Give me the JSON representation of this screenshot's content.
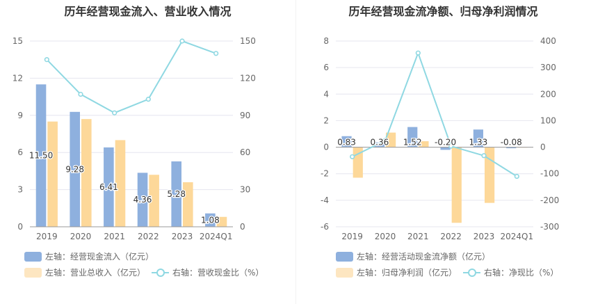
{
  "charts": [
    {
      "id": "left",
      "title": "历年经营现金流入、营业收入情况",
      "chart_data": {
        "type": "bar",
        "categories": [
          "2019",
          "2020",
          "2021",
          "2022",
          "2023",
          "2024Q1"
        ],
        "y_left": {
          "ticks": [
            0,
            3,
            6,
            9,
            12,
            15
          ],
          "range": [
            0,
            15
          ]
        },
        "y_right": {
          "ticks": [
            0,
            30,
            60,
            90,
            120,
            150
          ],
          "range": [
            0,
            150
          ]
        },
        "series": [
          {
            "name": "左轴：经营现金流入（亿元）",
            "kind": "bar",
            "axis": "left",
            "color": "#8eb0de",
            "values": [
              11.5,
              9.28,
              6.41,
              4.36,
              5.28,
              1.08
            ],
            "labels": [
              "11.50",
              "9.28",
              "6.41",
              "4.36",
              "5.28",
              "1.08"
            ]
          },
          {
            "name": "左轴：营业总收入（亿元）",
            "kind": "bar",
            "axis": "left",
            "color": "#fdd899",
            "values": [
              8.5,
              8.7,
              7.0,
              4.2,
              3.6,
              0.8
            ]
          },
          {
            "name": "右轴：营收现金比（%）",
            "kind": "line",
            "axis": "right",
            "color": "#8fd8e2",
            "values": [
              135,
              107,
              92,
              103,
              150,
              140
            ]
          }
        ]
      }
    },
    {
      "id": "right",
      "title": "历年经营现金流净额、归母净利润情况",
      "chart_data": {
        "type": "bar",
        "categories": [
          "2019",
          "2020",
          "2021",
          "2022",
          "2023",
          "2024Q1"
        ],
        "y_left": {
          "ticks": [
            -6,
            -4,
            -2,
            0,
            2,
            4,
            6,
            8
          ],
          "range": [
            -6,
            8
          ]
        },
        "y_right": {
          "ticks": [
            -300,
            -200,
            -100,
            0,
            100,
            200,
            300,
            400
          ],
          "range": [
            -300,
            400
          ]
        },
        "series": [
          {
            "name": "左轴：经营活动现金流净额（亿元）",
            "kind": "bar",
            "axis": "left",
            "color": "#8eb0de",
            "values": [
              0.83,
              0.36,
              1.52,
              -0.2,
              1.33,
              -0.08
            ],
            "labels": [
              "0.83",
              "0.36",
              "1.52",
              "-0.20",
              "1.33",
              "-0.08"
            ]
          },
          {
            "name": "左轴：归母净利润（亿元）",
            "kind": "bar",
            "axis": "left",
            "color": "#fdd899",
            "values": [
              -2.3,
              1.1,
              0.45,
              -5.7,
              -4.2,
              0.01
            ]
          },
          {
            "name": "右轴：净现比（%）",
            "kind": "line",
            "axis": "right",
            "color": "#8fd8e2",
            "values": [
              -36,
              25,
              355,
              4,
              -32,
              -110
            ]
          }
        ]
      }
    }
  ]
}
